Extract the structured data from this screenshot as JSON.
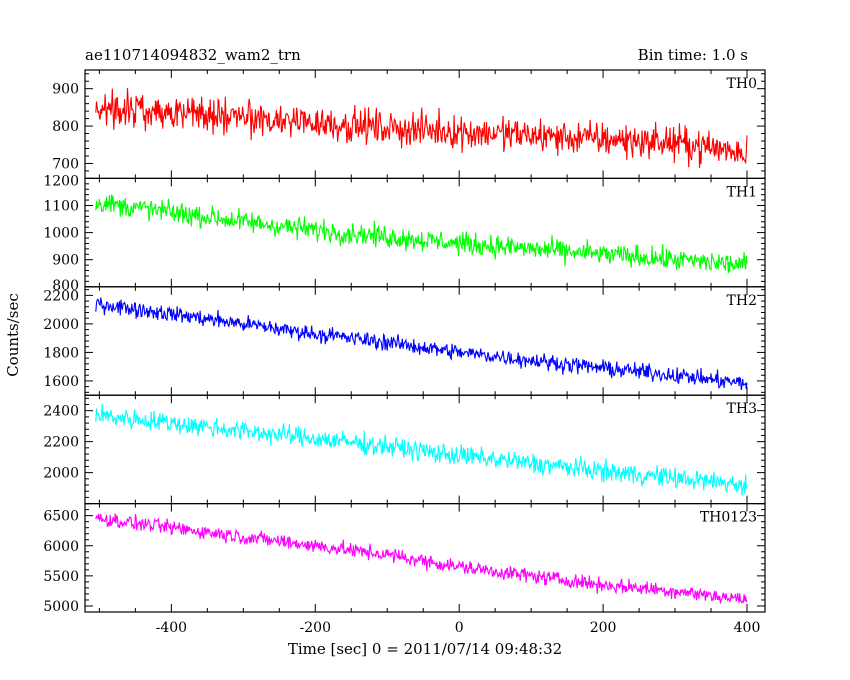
{
  "header": {
    "left_title": "ae110714094832_wam2_trn",
    "right_title": "Bin time: 1.0 s"
  },
  "chart_data": {
    "type": "line",
    "xlabel": "Time [sec] 0 = 2011/07/14 09:48:32",
    "ylabel": "Counts/sec",
    "xlim": [
      -520,
      425
    ],
    "x_ticks": [
      -400,
      -200,
      0,
      200,
      400
    ],
    "bin_time_s": 1.0,
    "panels": [
      {
        "name": "TH0",
        "color": "#ff0000",
        "ylim": [
          660,
          950
        ],
        "y_ticks": [
          700,
          800,
          900
        ],
        "x": [
          -500,
          -400,
          -300,
          -200,
          -100,
          0,
          100,
          200,
          300,
          400
        ],
        "y": [
          850,
          840,
          820,
          810,
          795,
          785,
          775,
          765,
          755,
          730
        ],
        "noise_amplitude": 45
      },
      {
        "name": "TH1",
        "color": "#00ff00",
        "ylim": [
          800,
          1200
        ],
        "y_ticks": [
          900,
          1000,
          1100
        ],
        "y_tick_label_top": "1200",
        "y_tick_label_bottom": "800",
        "x": [
          -500,
          -400,
          -300,
          -200,
          -100,
          0,
          100,
          200,
          300,
          400
        ],
        "y": [
          1110,
          1075,
          1040,
          1010,
          985,
          960,
          940,
          920,
          900,
          880
        ],
        "noise_amplitude": 40
      },
      {
        "name": "TH2",
        "color": "#0000ff",
        "ylim": [
          1500,
          2260
        ],
        "y_ticks": [
          1600,
          1800,
          2000
        ],
        "y_tick_label_top": "2200",
        "x": [
          -500,
          -400,
          -300,
          -200,
          -100,
          0,
          100,
          200,
          300,
          400
        ],
        "y": [
          2140,
          2070,
          2000,
          1930,
          1870,
          1800,
          1745,
          1690,
          1640,
          1580
        ],
        "noise_amplitude": 55
      },
      {
        "name": "TH3",
        "color": "#00ffff",
        "ylim": [
          1800,
          2500
        ],
        "y_ticks": [
          2000,
          2200,
          2400
        ],
        "x": [
          -500,
          -400,
          -300,
          -200,
          -100,
          0,
          100,
          200,
          300,
          400
        ],
        "y": [
          2370,
          2320,
          2270,
          2220,
          2170,
          2110,
          2060,
          2010,
          1965,
          1920
        ],
        "noise_amplitude": 65
      },
      {
        "name": "TH0123",
        "color": "#ff00ff",
        "ylim": [
          4900,
          6700
        ],
        "y_ticks": [
          5000,
          5500,
          6000,
          6500
        ],
        "x": [
          -500,
          -400,
          -300,
          -200,
          -100,
          0,
          100,
          200,
          300,
          400
        ],
        "y": [
          6450,
          6300,
          6150,
          6000,
          5850,
          5650,
          5500,
          5350,
          5250,
          5100
        ],
        "noise_amplitude": 120
      }
    ]
  }
}
